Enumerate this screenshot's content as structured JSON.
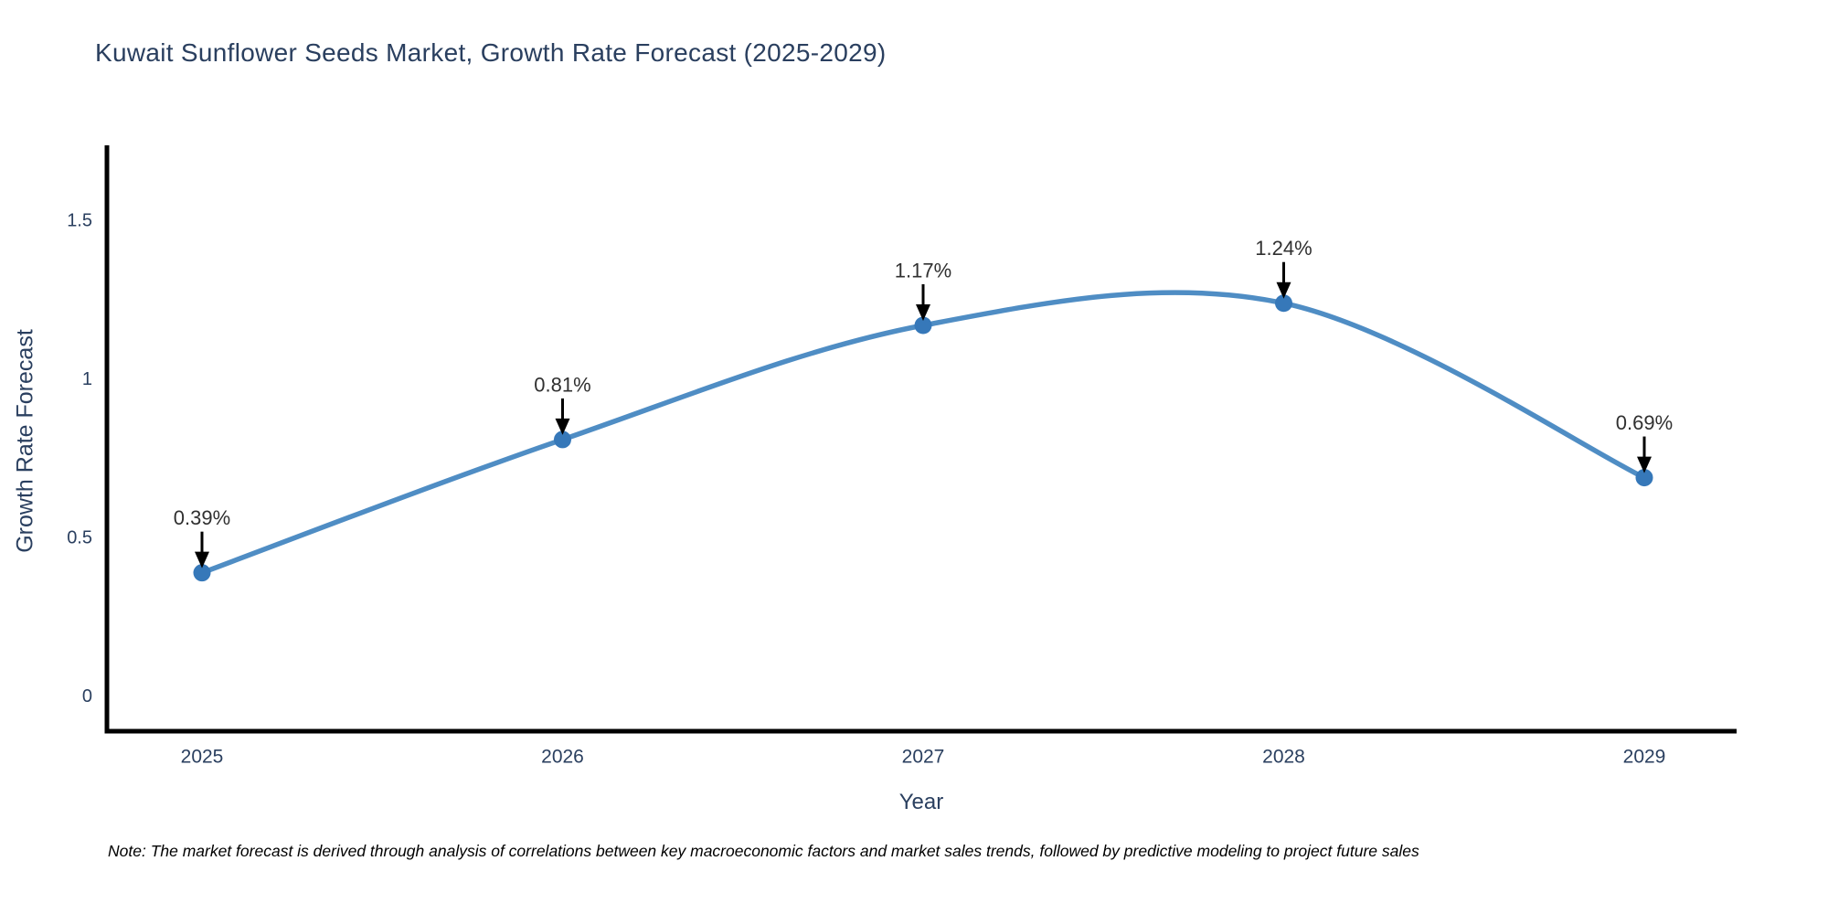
{
  "title": "Kuwait Sunflower Seeds Market, Growth Rate Forecast (2025-2029)",
  "note": "Note: The market forecast is derived through analysis of correlations between key macroeconomic factors and market sales trends, followed by predictive modeling to project future sales",
  "colors": {
    "title_text": "#2a3f5f",
    "axis_text": "#2a3f5f",
    "tick_text": "#2a3f5f",
    "annotation_text": "#303030",
    "axis_line": "#000000",
    "arrow": "#000000",
    "series_line": "#4f8dc4",
    "marker": "#3678b9",
    "background": "#ffffff"
  },
  "chart_data": {
    "type": "line",
    "title": "Kuwait Sunflower Seeds Market, Growth Rate Forecast (2025-2029)",
    "xlabel": "Year",
    "ylabel": "Growth Rate Forecast",
    "x": [
      "2025",
      "2026",
      "2027",
      "2028",
      "2029"
    ],
    "values": [
      0.39,
      0.81,
      1.17,
      1.24,
      0.69
    ],
    "point_labels": [
      "0.39%",
      "0.81%",
      "1.17%",
      "1.24%",
      "0.69%"
    ],
    "yticks": [
      "0",
      "0.5",
      "1",
      "1.5"
    ],
    "ytick_values": [
      0,
      0.5,
      1,
      1.5
    ],
    "ylim": [
      -0.12,
      1.85
    ],
    "line_shape": "spline",
    "markers": true,
    "annotations": "arrow-to-point",
    "grid": false,
    "legend_position": "none"
  }
}
